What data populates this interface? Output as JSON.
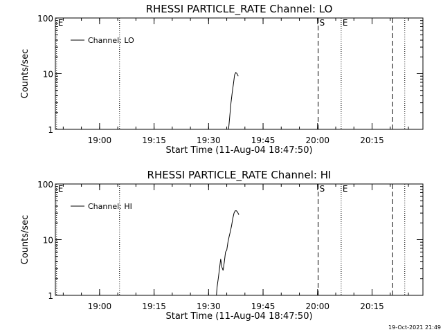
{
  "footer_timestamp": "19-Oct-2021 21:49",
  "chart_data": [
    {
      "type": "line",
      "title": "RHESSI PARTICLE_RATE Channel: LO",
      "xlabel": "Start Time (11-Aug-04 18:47:50)",
      "ylabel": "Counts/sec",
      "y_scale": "log",
      "ylim": [
        1,
        100
      ],
      "y_ticks": [
        "1",
        "10",
        "100"
      ],
      "xlim": [
        "18:47:50",
        "20:29:00"
      ],
      "x_ticks": [
        "19:00",
        "19:15",
        "19:30",
        "19:45",
        "20:00",
        "20:15"
      ],
      "legend": {
        "placement": "top-left",
        "label": "Channel: LO"
      },
      "vertical_markers": [
        {
          "time": "18:48:10",
          "style": "dotted",
          "label": "E"
        },
        {
          "time": "19:05:30",
          "style": "dotted",
          "label": ""
        },
        {
          "time": "20:00:10",
          "style": "dashed",
          "label": "S"
        },
        {
          "time": "20:06:30",
          "style": "dotted",
          "label": "E"
        },
        {
          "time": "20:20:40",
          "style": "dashed",
          "label": ""
        },
        {
          "time": "20:24:00",
          "style": "dotted",
          "label": ""
        }
      ],
      "series": [
        {
          "name": "Channel: LO",
          "x": [
            "19:35:30",
            "19:35:50",
            "19:36:10",
            "19:36:30",
            "19:36:50",
            "19:37:10",
            "19:37:30",
            "19:37:50",
            "19:38:10"
          ],
          "y": [
            1,
            1.7,
            3,
            4.5,
            6.5,
            9.5,
            10.5,
            10,
            9
          ]
        }
      ]
    },
    {
      "type": "line",
      "title": "RHESSI PARTICLE_RATE Channel: HI",
      "xlabel": "Start Time (11-Aug-04 18:47:50)",
      "ylabel": "Counts/sec",
      "y_scale": "log",
      "ylim": [
        1,
        100
      ],
      "y_ticks": [
        "1",
        "10",
        "100"
      ],
      "xlim": [
        "18:47:50",
        "20:29:00"
      ],
      "x_ticks": [
        "19:00",
        "19:15",
        "19:30",
        "19:45",
        "20:00",
        "20:15"
      ],
      "legend": {
        "placement": "top-left",
        "label": "Channel: HI"
      },
      "vertical_markers": [
        {
          "time": "18:48:10",
          "style": "dotted",
          "label": "E"
        },
        {
          "time": "19:05:30",
          "style": "dotted",
          "label": ""
        },
        {
          "time": "20:00:10",
          "style": "dashed",
          "label": "S"
        },
        {
          "time": "20:06:30",
          "style": "dotted",
          "label": "E"
        },
        {
          "time": "20:20:40",
          "style": "dashed",
          "label": ""
        },
        {
          "time": "20:24:00",
          "style": "dotted",
          "label": ""
        }
      ],
      "series": [
        {
          "name": "Channel: HI",
          "x": [
            "19:32:10",
            "19:32:20",
            "19:32:40",
            "19:33:00",
            "19:33:20",
            "19:33:40",
            "19:34:00",
            "19:34:20",
            "19:34:40",
            "19:35:00",
            "19:35:20",
            "19:35:40",
            "19:36:00",
            "19:36:20",
            "19:36:40",
            "19:37:00",
            "19:37:20",
            "19:37:40",
            "19:38:00",
            "19:38:20"
          ],
          "y": [
            1,
            1.4,
            2,
            3,
            4.5,
            3.2,
            2.8,
            4,
            6,
            6.5,
            9,
            11.5,
            14,
            18,
            24,
            30,
            33,
            33,
            31,
            28
          ]
        }
      ]
    }
  ]
}
